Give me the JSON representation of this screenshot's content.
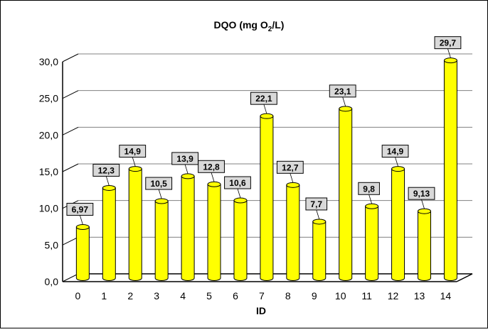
{
  "chart_data": {
    "type": "bar",
    "title": "DQO (mg O2/L)",
    "title_parts": {
      "prefix": "DQO (mg O",
      "subscript": "2",
      "suffix": "/L)"
    },
    "xlabel": "ID",
    "ylabel": "",
    "categories": [
      "0",
      "1",
      "2",
      "3",
      "4",
      "5",
      "6",
      "7",
      "8",
      "9",
      "10",
      "11",
      "12",
      "13",
      "14"
    ],
    "values": [
      6.97,
      12.3,
      14.9,
      10.5,
      13.9,
      12.8,
      10.6,
      22.1,
      12.7,
      7.7,
      23.1,
      9.8,
      14.9,
      9.13,
      29.7
    ],
    "value_labels": [
      "6,97",
      "12,3",
      "14,9",
      "10,5",
      "13,9",
      "12,8",
      "10,6",
      "22,1",
      "12,7",
      "7,7",
      "23,1",
      "9,8",
      "14,9",
      "9,13",
      "29,7"
    ],
    "y_ticks": [
      0,
      5,
      10,
      15,
      20,
      25,
      30
    ],
    "y_tick_labels": [
      "0,0",
      "5,0",
      "10,0",
      "15,0",
      "20,0",
      "25,0",
      "30,0"
    ],
    "ylim": [
      0,
      30
    ],
    "grid": true,
    "bar_color": "#ffff00",
    "bar_outline": "#000000",
    "label_bg": "#d9d9d9"
  }
}
